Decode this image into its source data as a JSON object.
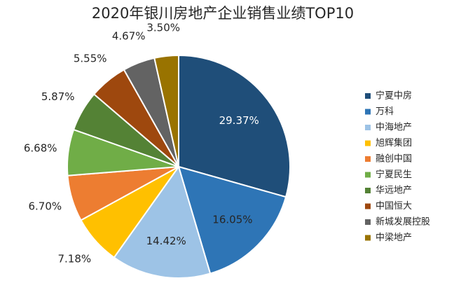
{
  "chart_data": {
    "type": "pie",
    "title": "2020年银川房地产企业销售业绩TOP10",
    "legend_position": "right",
    "start": "top",
    "direction": "clockwise",
    "slices": [
      {
        "label": "宁夏中房",
        "value": 29.37,
        "display": "29.37%",
        "color": "#1f4e79"
      },
      {
        "label": "万科",
        "value": 16.05,
        "display": "16.05%",
        "color": "#2e75b6"
      },
      {
        "label": "中海地产",
        "value": 14.42,
        "display": "14.42%",
        "color": "#9dc3e6"
      },
      {
        "label": "旭辉集团",
        "value": 7.18,
        "display": "7.18%",
        "color": "#ffc000"
      },
      {
        "label": "融创中国",
        "value": 6.7,
        "display": "6.70%",
        "color": "#ed7d31"
      },
      {
        "label": "宁夏民生",
        "value": 6.68,
        "display": "6.68%",
        "color": "#70ad47"
      },
      {
        "label": "华远地产",
        "value": 5.87,
        "display": "5.87%",
        "color": "#548235"
      },
      {
        "label": "中国恒大",
        "value": 5.55,
        "display": "5.55%",
        "color": "#9e480e"
      },
      {
        "label": "新城发展控股",
        "value": 4.67,
        "display": "4.67%",
        "color": "#636363"
      },
      {
        "label": "中梁地产",
        "value": 3.5,
        "display": "3.50%",
        "color": "#997300"
      }
    ]
  }
}
